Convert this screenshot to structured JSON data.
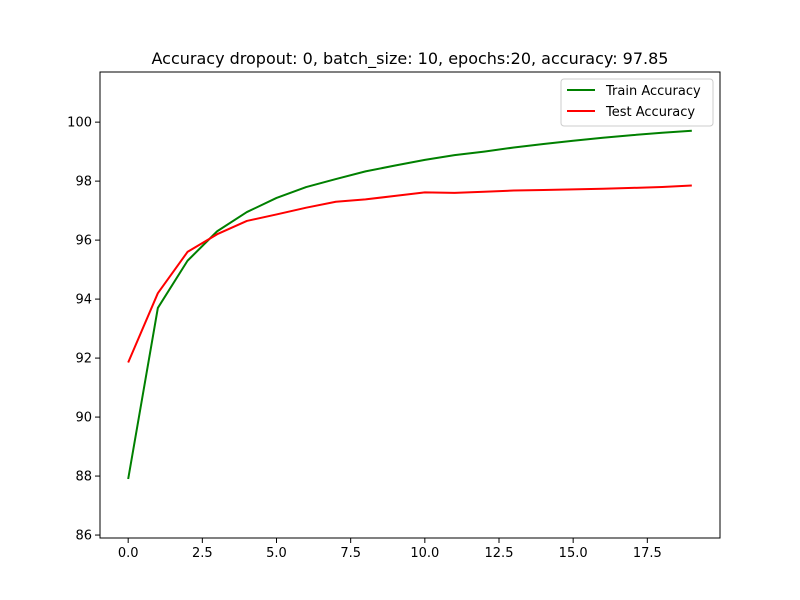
{
  "chart_data": {
    "type": "line",
    "title": "Accuracy dropout: 0, batch_size: 10, epochs:20, accuracy: 97.85",
    "xlabel": "",
    "ylabel": "",
    "xlim": [
      -0.95,
      19.95
    ],
    "ylim": [
      85.9,
      101.7
    ],
    "x_ticks": [
      0.0,
      2.5,
      5.0,
      7.5,
      10.0,
      12.5,
      15.0,
      17.5
    ],
    "x_tick_labels": [
      "0.0",
      "2.5",
      "5.0",
      "7.5",
      "10.0",
      "12.5",
      "15.0",
      "17.5"
    ],
    "y_ticks": [
      86,
      88,
      90,
      92,
      94,
      96,
      98,
      100
    ],
    "y_tick_labels": [
      "86",
      "88",
      "90",
      "92",
      "94",
      "96",
      "98",
      "100"
    ],
    "x": [
      0,
      1,
      2,
      3,
      4,
      5,
      6,
      7,
      8,
      9,
      10,
      11,
      12,
      13,
      14,
      15,
      16,
      17,
      18,
      19
    ],
    "series": [
      {
        "name": "Train Accuracy",
        "color": "#008000",
        "values": [
          87.9,
          93.7,
          95.3,
          96.3,
          96.95,
          97.43,
          97.8,
          98.07,
          98.33,
          98.53,
          98.72,
          98.88,
          99.0,
          99.14,
          99.26,
          99.37,
          99.47,
          99.56,
          99.64,
          99.71
        ]
      },
      {
        "name": "Test Accuracy",
        "color": "#ff0000",
        "values": [
          91.85,
          94.2,
          95.6,
          96.2,
          96.65,
          96.87,
          97.1,
          97.3,
          97.38,
          97.5,
          97.62,
          97.6,
          97.64,
          97.68,
          97.7,
          97.72,
          97.74,
          97.77,
          97.8,
          97.85
        ]
      }
    ],
    "grid": false,
    "legend_position": "top-right"
  }
}
